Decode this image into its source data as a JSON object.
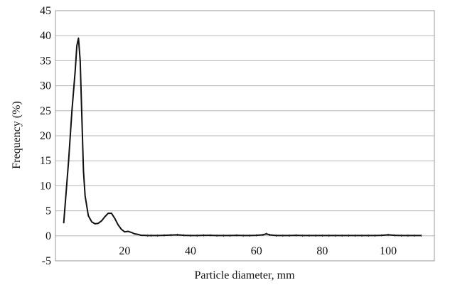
{
  "chart_data": {
    "type": "line",
    "title": "",
    "xlabel": "Particle diameter, mm",
    "ylabel": "Frequency (%)",
    "xlim": [
      -1,
      114
    ],
    "ylim": [
      -5,
      45
    ],
    "x_ticks": [
      20,
      40,
      60,
      80,
      100
    ],
    "y_ticks": [
      -5,
      0,
      5,
      10,
      15,
      20,
      25,
      30,
      35,
      40,
      45
    ],
    "grid": "horizontal",
    "legend": "none",
    "series": [
      {
        "color": "#111111",
        "x": [
          1.5,
          3,
          4,
          5,
          5.5,
          6,
          6.5,
          7,
          7.5,
          8,
          9,
          10,
          11,
          12,
          13,
          14,
          15,
          16,
          17,
          18,
          19,
          20,
          21,
          22,
          23,
          24,
          25,
          26,
          27,
          28,
          30,
          32,
          34,
          36,
          38,
          40,
          42,
          44,
          46,
          48,
          50,
          52,
          54,
          56,
          58,
          60,
          62,
          63,
          64,
          66,
          68,
          70,
          72,
          74,
          76,
          78,
          80,
          82,
          84,
          86,
          88,
          90,
          92,
          94,
          96,
          98,
          100,
          102,
          104,
          106,
          108,
          110
        ],
        "y": [
          2.5,
          15,
          25,
          33,
          38,
          39.5,
          35,
          24,
          13,
          8,
          4,
          2.8,
          2.4,
          2.5,
          3,
          3.8,
          4.5,
          4.5,
          3.5,
          2.2,
          1.3,
          0.8,
          0.9,
          0.7,
          0.4,
          0.3,
          0.1,
          0.1,
          0.05,
          0.05,
          0.05,
          0.1,
          0.15,
          0.2,
          0.1,
          0.05,
          0.05,
          0.1,
          0.1,
          0.05,
          0.05,
          0.05,
          0.1,
          0.05,
          0.05,
          0.1,
          0.2,
          0.4,
          0.2,
          0.05,
          0.05,
          0.05,
          0.1,
          0.05,
          0.05,
          0.05,
          0.05,
          0.05,
          0.05,
          0.05,
          0.05,
          0.05,
          0.05,
          0.05,
          0.05,
          0.1,
          0.2,
          0.1,
          0.05,
          0.05,
          0.05,
          0.05
        ]
      }
    ]
  }
}
